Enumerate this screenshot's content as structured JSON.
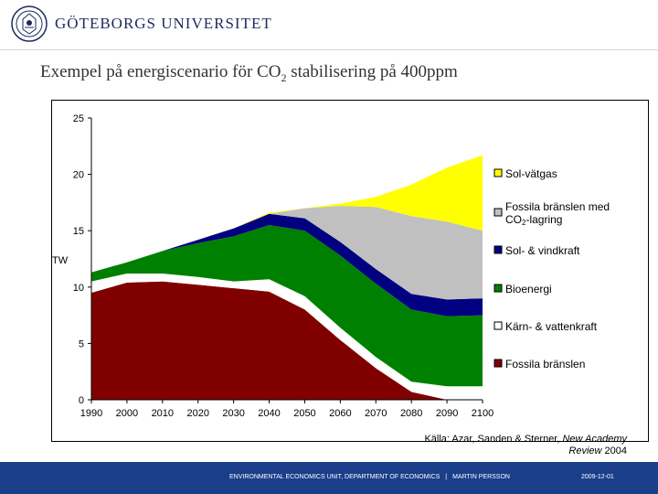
{
  "header": {
    "university_name": "GÖTEBORGS UNIVERSITET",
    "seal_icon": "university-seal-icon"
  },
  "slide": {
    "title_main": "Exempel på energiscenario för CO",
    "title_sub": "2",
    "title_end": " stabilisering på 400ppm"
  },
  "chart_data": {
    "type": "area",
    "stacked": true,
    "title": "",
    "xlabel": "",
    "ylabel": "TW",
    "xlim": [
      1990,
      2100
    ],
    "ylim": [
      0,
      25
    ],
    "grid": false,
    "legend_position": "right",
    "x": [
      1990,
      2000,
      2010,
      2020,
      2030,
      2040,
      2050,
      2060,
      2070,
      2080,
      2090,
      2100
    ],
    "y_ticks": [
      "0",
      "5",
      "10",
      "15",
      "20",
      "25"
    ],
    "x_ticks": [
      "1990",
      "2000",
      "2010",
      "2020",
      "2030",
      "2040",
      "2050",
      "2060",
      "2070",
      "2080",
      "2090",
      "2100"
    ],
    "series": [
      {
        "name": "Fossila bränslen",
        "color": "#800000",
        "values": [
          9.5,
          10.4,
          10.5,
          10.2,
          9.9,
          9.6,
          8.0,
          5.3,
          2.8,
          0.7,
          0.0,
          0.0
        ]
      },
      {
        "name": "Kärn- & vattenkraft",
        "color": "#ffffff",
        "values": [
          1.0,
          0.8,
          0.7,
          0.7,
          0.6,
          1.1,
          1.2,
          1.1,
          1.0,
          0.9,
          1.2,
          1.2
        ]
      },
      {
        "name": "Bioenergi",
        "color": "#008000",
        "values": [
          0.8,
          1.0,
          2.0,
          3.0,
          4.0,
          4.8,
          5.8,
          6.4,
          6.5,
          6.4,
          6.2,
          6.3
        ]
      },
      {
        "name": "Sol- & vindkraft",
        "color": "#000080",
        "values": [
          0.0,
          0.0,
          0.0,
          0.3,
          0.7,
          1.0,
          1.1,
          1.2,
          1.3,
          1.4,
          1.5,
          1.5
        ]
      },
      {
        "name": "Fossila bränslen med CO₂-lagring",
        "color": "#c0c0c0",
        "values": [
          0.0,
          0.0,
          0.0,
          0.0,
          0.0,
          0.0,
          0.9,
          3.2,
          5.5,
          6.9,
          6.9,
          6.0
        ]
      },
      {
        "name": "Sol-vätgas",
        "color": "#ffff00",
        "values": [
          0.0,
          0.0,
          0.0,
          0.0,
          0.0,
          0.1,
          0.0,
          0.2,
          0.9,
          2.8,
          4.8,
          6.7
        ]
      }
    ],
    "legend": [
      {
        "label": "Sol-vätgas",
        "color": "#ffff00"
      },
      {
        "label_main": "Fossila bränslen med",
        "label_line2a": "CO",
        "label_line2sub": "2",
        "label_line2b": "-lagring",
        "color": "#c0c0c0"
      },
      {
        "label": "Sol- & vindkraft",
        "color": "#000080"
      },
      {
        "label": "Bioenergi",
        "color": "#008000"
      },
      {
        "label": "Kärn- & vattenkraft",
        "color": "#ffffff"
      },
      {
        "label": "Fossila bränslen",
        "color": "#800000"
      }
    ]
  },
  "source": {
    "line1": "Källa: Azar, Sanden & Sterner, ",
    "journal1": "New Academy",
    "journal2": "Review",
    "year": " 2004"
  },
  "footer": {
    "unit": "ENVIRONMENTAL ECONOMICS UNIT, DEPARTMENT OF ECONOMICS",
    "separator": "|",
    "author": "MARTIN PERSSON",
    "date": "2009-12-01"
  }
}
